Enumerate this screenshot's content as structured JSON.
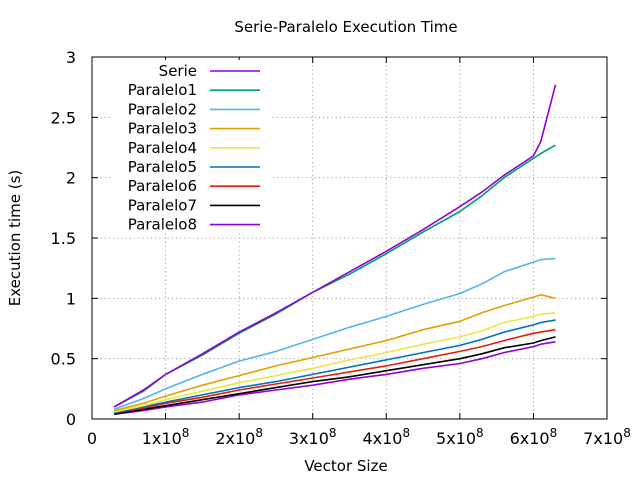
{
  "chart_data": {
    "type": "line",
    "title": "Serie-Paralelo Execution Time",
    "xlabel": "Vector Size",
    "ylabel": "Execution time (s)",
    "xlim": [
      0,
      700000000
    ],
    "ylim": [
      0,
      3
    ],
    "grid": true,
    "legend_position": "top-left",
    "x_ticks": [
      {
        "value": 0,
        "mantissa": "0",
        "exp": ""
      },
      {
        "value": 100000000,
        "mantissa": "1x10",
        "exp": "8"
      },
      {
        "value": 200000000,
        "mantissa": "2x10",
        "exp": "8"
      },
      {
        "value": 300000000,
        "mantissa": "3x10",
        "exp": "8"
      },
      {
        "value": 400000000,
        "mantissa": "4x10",
        "exp": "8"
      },
      {
        "value": 500000000,
        "mantissa": "5x10",
        "exp": "8"
      },
      {
        "value": 600000000,
        "mantissa": "6x10",
        "exp": "8"
      },
      {
        "value": 700000000,
        "mantissa": "7x10",
        "exp": "8"
      }
    ],
    "y_ticks": [
      {
        "value": 0,
        "label": "0"
      },
      {
        "value": 0.5,
        "label": "0.5"
      },
      {
        "value": 1,
        "label": "1"
      },
      {
        "value": 1.5,
        "label": "1.5"
      },
      {
        "value": 2,
        "label": "2"
      },
      {
        "value": 2.5,
        "label": "2.5"
      },
      {
        "value": 3,
        "label": "3"
      }
    ],
    "x": [
      30000000,
      70000000,
      100000000,
      150000000,
      200000000,
      250000000,
      300000000,
      350000000,
      400000000,
      450000000,
      500000000,
      530000000,
      560000000,
      600000000,
      610000000,
      630000000
    ],
    "series": [
      {
        "name": "Serie",
        "color": "#9400d3",
        "values": [
          0.1,
          0.24,
          0.37,
          0.54,
          0.72,
          0.88,
          1.05,
          1.22,
          1.39,
          1.57,
          1.76,
          1.88,
          2.02,
          2.18,
          2.3,
          2.77
        ]
      },
      {
        "name": "Paralelo1",
        "color": "#009e73",
        "values": [
          0.1,
          0.23,
          0.37,
          0.53,
          0.71,
          0.87,
          1.05,
          1.2,
          1.37,
          1.55,
          1.72,
          1.85,
          2.0,
          2.16,
          2.2,
          2.27
        ]
      },
      {
        "name": "Paralelo2",
        "color": "#56b4e9",
        "values": [
          0.08,
          0.17,
          0.25,
          0.37,
          0.48,
          0.56,
          0.66,
          0.76,
          0.85,
          0.95,
          1.04,
          1.12,
          1.22,
          1.3,
          1.32,
          1.33
        ]
      },
      {
        "name": "Paralelo3",
        "color": "#e69f00",
        "values": [
          0.07,
          0.13,
          0.19,
          0.28,
          0.36,
          0.44,
          0.51,
          0.58,
          0.65,
          0.74,
          0.81,
          0.88,
          0.94,
          1.01,
          1.03,
          1.0
        ]
      },
      {
        "name": "Paralelo4",
        "color": "#f0e442",
        "values": [
          0.06,
          0.11,
          0.16,
          0.23,
          0.3,
          0.36,
          0.42,
          0.49,
          0.55,
          0.62,
          0.68,
          0.73,
          0.8,
          0.85,
          0.87,
          0.88
        ]
      },
      {
        "name": "Paralelo5",
        "color": "#0072b2",
        "values": [
          0.05,
          0.1,
          0.14,
          0.2,
          0.26,
          0.31,
          0.37,
          0.43,
          0.49,
          0.55,
          0.61,
          0.66,
          0.72,
          0.78,
          0.8,
          0.82
        ]
      },
      {
        "name": "Paralelo6",
        "color": "#e51e10",
        "values": [
          0.05,
          0.09,
          0.13,
          0.18,
          0.24,
          0.29,
          0.34,
          0.39,
          0.44,
          0.5,
          0.56,
          0.6,
          0.65,
          0.71,
          0.72,
          0.74
        ]
      },
      {
        "name": "Paralelo7",
        "color": "#000000",
        "values": [
          0.04,
          0.08,
          0.11,
          0.16,
          0.21,
          0.26,
          0.31,
          0.35,
          0.4,
          0.45,
          0.5,
          0.54,
          0.59,
          0.63,
          0.65,
          0.68
        ]
      },
      {
        "name": "Paralelo8",
        "color": "#9400d3",
        "values": [
          0.04,
          0.07,
          0.1,
          0.14,
          0.2,
          0.24,
          0.28,
          0.33,
          0.37,
          0.42,
          0.46,
          0.5,
          0.55,
          0.6,
          0.62,
          0.64
        ]
      }
    ]
  }
}
